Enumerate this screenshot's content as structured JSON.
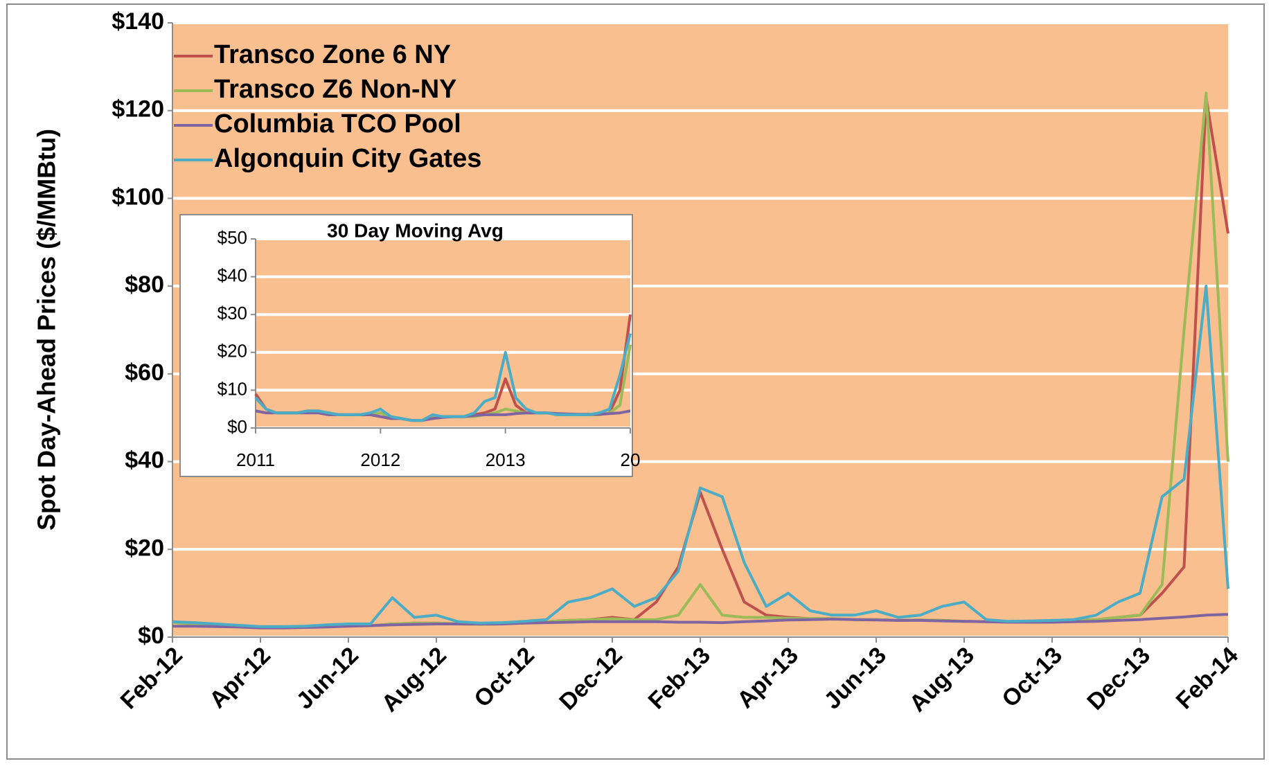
{
  "chart_data": [
    {
      "type": "line",
      "y_label": "Spot Day-Ahead Prices ($/MMBtu)",
      "categories": [
        "Feb-12",
        null,
        null,
        null,
        "Apr-12",
        null,
        null,
        null,
        "Jun-12",
        null,
        null,
        null,
        "Aug-12",
        null,
        null,
        null,
        "Oct-12",
        null,
        null,
        null,
        "Dec-12",
        null,
        null,
        null,
        "Feb-13",
        null,
        null,
        null,
        "Apr-13",
        null,
        null,
        null,
        "Jun-13",
        null,
        null,
        null,
        "Aug-13",
        null,
        null,
        null,
        "Oct-13",
        null,
        null,
        null,
        "Dec-13",
        null,
        null,
        null,
        "Feb-14"
      ],
      "ylim": [
        0,
        140
      ],
      "yticks": [
        {
          "value": 0,
          "label": "$0"
        },
        {
          "value": 20,
          "label": "$20"
        },
        {
          "value": 40,
          "label": "$40"
        },
        {
          "value": 60,
          "label": "$60"
        },
        {
          "value": 80,
          "label": "$80"
        },
        {
          "value": 100,
          "label": "$100"
        },
        {
          "value": 120,
          "label": "$120"
        },
        {
          "value": 140,
          "label": "$140"
        }
      ],
      "grid": true,
      "legend": "upper left",
      "series": [
        {
          "name": "Transco Zone 6 NY",
          "color": "#c0504d",
          "values": [
            3.5,
            3,
            2.8,
            2.5,
            2.2,
            2.2,
            2.3,
            2.5,
            2.6,
            2.6,
            3,
            3.2,
            3.2,
            3,
            2.9,
            3,
            3.4,
            3.5,
            3.8,
            4,
            4.5,
            4,
            8,
            16,
            33,
            20,
            8,
            5,
            4.5,
            4.2,
            4.2,
            4,
            4,
            3.8,
            3.9,
            3.8,
            3.6,
            3.5,
            3.5,
            3.6,
            3.7,
            3.8,
            4,
            4.5,
            5,
            10,
            16,
            123,
            92
          ]
        },
        {
          "name": "Transco Z6 Non-NY",
          "color": "#9bbb59",
          "values": [
            3.3,
            3,
            2.8,
            2.5,
            2.2,
            2.2,
            2.3,
            2.5,
            2.6,
            2.6,
            3,
            3.2,
            3.2,
            3,
            2.9,
            3,
            3.4,
            3.5,
            3.8,
            4,
            4.2,
            4,
            4,
            5,
            12,
            5,
            4.5,
            4.5,
            4.3,
            4.2,
            4.2,
            4,
            4,
            3.8,
            3.9,
            3.8,
            3.6,
            3.5,
            3.5,
            3.6,
            3.7,
            3.8,
            4,
            4.5,
            5,
            12,
            70,
            124,
            40
          ]
        },
        {
          "name": "Columbia TCO Pool",
          "color": "#8064a2",
          "values": [
            2.5,
            2.5,
            2.4,
            2.3,
            2.1,
            2.1,
            2.2,
            2.3,
            2.5,
            2.6,
            2.8,
            2.9,
            3,
            3,
            3,
            3,
            3.2,
            3.3,
            3.4,
            3.5,
            3.5,
            3.5,
            3.5,
            3.4,
            3.4,
            3.3,
            3.5,
            3.7,
            3.9,
            4,
            4.1,
            4,
            3.9,
            3.8,
            3.8,
            3.7,
            3.6,
            3.5,
            3.4,
            3.4,
            3.4,
            3.5,
            3.6,
            3.8,
            4,
            4.3,
            4.6,
            5,
            5.2
          ]
        },
        {
          "name": "Algonquin City Gates",
          "color": "#4bacc6",
          "values": [
            3.5,
            3.3,
            3,
            2.7,
            2.4,
            2.4,
            2.5,
            2.8,
            3,
            3,
            9,
            4.5,
            5,
            3.5,
            3.2,
            3.3,
            3.6,
            4,
            8,
            9,
            11,
            7,
            9,
            15,
            34,
            32,
            17,
            7,
            10,
            6,
            5,
            5,
            6,
            4.5,
            5,
            7,
            8,
            4,
            3.6,
            3.7,
            3.8,
            4,
            5,
            8,
            10,
            32,
            36,
            80,
            11
          ]
        }
      ]
    },
    {
      "type": "line",
      "title": "30 Day Moving Avg",
      "categories": [
        "2011",
        null,
        null,
        null,
        null,
        null,
        null,
        null,
        null,
        null,
        null,
        null,
        "2012",
        null,
        null,
        null,
        null,
        null,
        null,
        null,
        null,
        null,
        null,
        null,
        "2013",
        null,
        null,
        null,
        null,
        null,
        null,
        null,
        null,
        null,
        null,
        null,
        "20"
      ],
      "ylim": [
        0,
        50
      ],
      "yticks": [
        {
          "value": 0,
          "label": "$0"
        },
        {
          "value": 10,
          "label": "$10"
        },
        {
          "value": 20,
          "label": "$20"
        },
        {
          "value": 30,
          "label": "$30"
        },
        {
          "value": 40,
          "label": "$40"
        },
        {
          "value": 50,
          "label": "$50"
        }
      ],
      "grid": true,
      "series": [
        {
          "color": "#c0504d",
          "values": [
            9,
            5,
            4,
            4,
            4,
            4.5,
            4.5,
            4,
            3.5,
            3.5,
            3.5,
            3.5,
            4,
            3,
            2.5,
            2,
            2,
            3,
            3,
            3,
            3,
            3.5,
            4,
            5,
            13,
            6,
            4,
            4,
            4,
            3.5,
            3.5,
            3.5,
            3.5,
            3.5,
            4,
            10,
            30
          ]
        },
        {
          "color": "#9bbb59",
          "values": [
            8,
            5,
            4,
            4,
            4,
            4.5,
            4.5,
            4,
            3.5,
            3.5,
            3.5,
            3.5,
            4,
            3,
            2.5,
            2,
            2,
            3,
            3,
            3,
            3,
            3,
            3.5,
            4,
            5,
            4.5,
            4,
            4,
            4,
            3.5,
            3.5,
            3.5,
            3.5,
            3.5,
            4,
            6,
            22
          ]
        },
        {
          "color": "#8064a2",
          "values": [
            4.5,
            4,
            4,
            4,
            4,
            4,
            4,
            3.5,
            3.5,
            3.5,
            3.5,
            3.5,
            3,
            2.5,
            2.5,
            2,
            2,
            2.5,
            2.8,
            3,
            3,
            3.3,
            3.5,
            3.5,
            3.5,
            3.8,
            4,
            4,
            4,
            3.8,
            3.7,
            3.6,
            3.6,
            3.6,
            3.8,
            4,
            4.5
          ]
        },
        {
          "color": "#4bacc6",
          "values": [
            8,
            5,
            4,
            4,
            4,
            4.5,
            4.5,
            4,
            3.5,
            3.5,
            3.5,
            4,
            5,
            3,
            2.5,
            2,
            2,
            3.5,
            3,
            3,
            3,
            4,
            7,
            8,
            20,
            8,
            5,
            4,
            4,
            3.5,
            3.5,
            3.5,
            3.5,
            4,
            5,
            14,
            25
          ]
        }
      ]
    }
  ]
}
